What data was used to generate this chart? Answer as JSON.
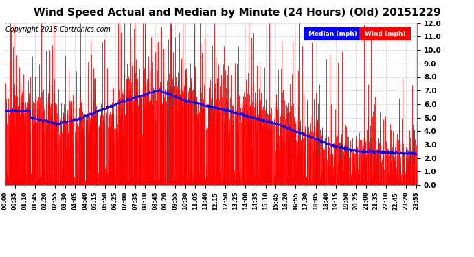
{
  "title": "Wind Speed Actual and Median by Minute (24 Hours) (Old) 20151229",
  "copyright": "Copyright 2015 Cartronics.com",
  "ylim": [
    0.0,
    12.0
  ],
  "yticks": [
    0.0,
    1.0,
    2.0,
    3.0,
    4.0,
    5.0,
    6.0,
    7.0,
    8.0,
    9.0,
    10.0,
    11.0,
    12.0
  ],
  "bg_color": "#ffffff",
  "grid_color": "#c8c8c8",
  "bar_color": "#ff0000",
  "median_color": "#0000ff",
  "legend_median_bg": "#0000ff",
  "legend_wind_bg": "#ff0000",
  "legend_text_color": "#ffffff",
  "title_fontsize": 11,
  "copyright_fontsize": 7,
  "xtick_interval_minutes": 35
}
